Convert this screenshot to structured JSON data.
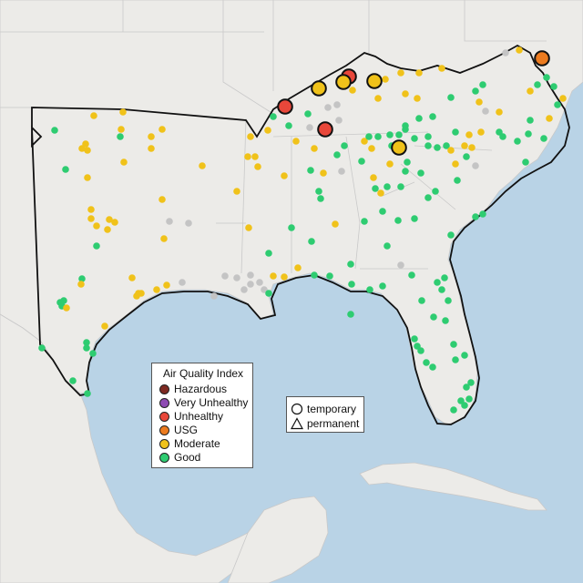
{
  "legend": {
    "title": "Air Quality Index",
    "items": [
      {
        "label": "Hazardous",
        "color": "#7e2a22"
      },
      {
        "label": "Very Unhealthy",
        "color": "#8e4bb3"
      },
      {
        "label": "Unhealthy",
        "color": "#e8473a"
      },
      {
        "label": "USG",
        "color": "#ec7b1f"
      },
      {
        "label": "Moderate",
        "color": "#f0c21a"
      },
      {
        "label": "Good",
        "color": "#2ecc71"
      }
    ]
  },
  "shape_legend": {
    "temporary": "temporary",
    "permanent": "permanent"
  },
  "colors": {
    "water": "#b9d3e6",
    "land": "#ecebe8",
    "nodata": "#c4c4c4"
  }
}
